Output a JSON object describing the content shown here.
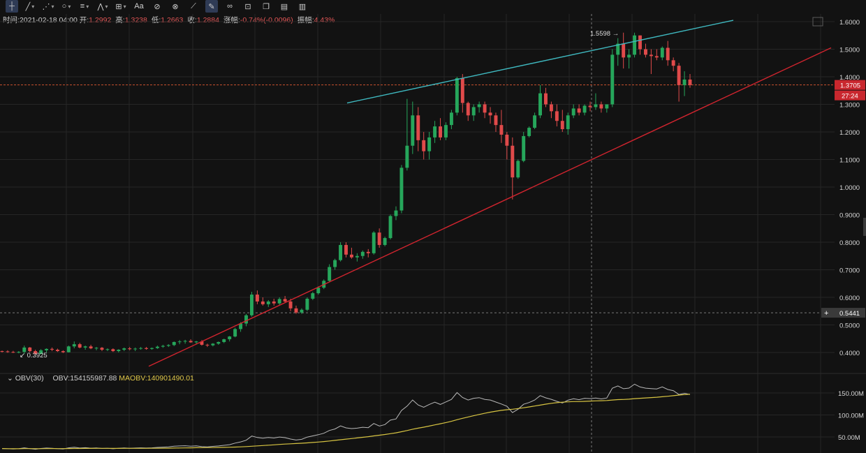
{
  "toolbar": {
    "tools": [
      {
        "name": "crosshair-icon",
        "glyph": "┼",
        "active": true
      },
      {
        "name": "trend-line-icon",
        "glyph": "╱",
        "dd": true
      },
      {
        "name": "multi-line-icon",
        "glyph": "⋰",
        "dd": true
      },
      {
        "name": "ellipse-icon",
        "glyph": "○",
        "dd": true
      },
      {
        "name": "parallel-lines-icon",
        "glyph": "≡",
        "dd": true
      },
      {
        "name": "zigzag-icon",
        "glyph": "⋀",
        "dd": true
      },
      {
        "name": "measure-icon",
        "glyph": "⊞",
        "dd": true
      },
      {
        "name": "text-icon",
        "glyph": "Aa"
      },
      {
        "name": "magnet-icon",
        "glyph": "⊘"
      },
      {
        "name": "brush-icon",
        "glyph": "⊗"
      },
      {
        "name": "ruler-icon",
        "glyph": "⟋"
      },
      {
        "name": "draw-mode-icon",
        "glyph": "✎",
        "active": true
      },
      {
        "name": "link-icon",
        "glyph": "∞"
      },
      {
        "name": "lock-icon",
        "glyph": "⊡"
      },
      {
        "name": "copy-icon",
        "glyph": "❐"
      },
      {
        "name": "stack-icon",
        "glyph": "▤"
      },
      {
        "name": "delete-icon",
        "glyph": "▥"
      }
    ]
  },
  "ohlc": {
    "time_label": "时间:",
    "time": "2021-02-18 04:00",
    "open_label": "开:",
    "open": "1.2992",
    "high_label": "高:",
    "high": "1.3238",
    "low_label": "低:",
    "low": "1.2663",
    "close_label": "收:",
    "close": "1.2884",
    "change_label": "涨幅:",
    "change": "-0.74%(-0.0096)",
    "amp_label": "振幅:",
    "amp": "4.43%"
  },
  "obv_legend": {
    "name": "OBV(30)",
    "obv": "OBV:154155987.88",
    "maobv": "MAOBV:140901490.01"
  },
  "chart_data": {
    "type": "candlestick",
    "y_ticks": [
      "1.6000",
      "1.5000",
      "1.4000",
      "1.3000",
      "1.2000",
      "1.1000",
      "1.0000",
      "0.9000",
      "0.8000",
      "0.7000",
      "0.6000",
      "0.5000",
      "0.4000"
    ],
    "ylim": [
      0.36,
      1.64
    ],
    "current_price": "1.3705",
    "countdown": "27:24",
    "crosshair_price": "0.5441",
    "high_marker": "1.5598",
    "low_marker": "0.3925",
    "candles": [
      [
        0.405,
        0.407,
        0.4,
        0.404
      ],
      [
        0.404,
        0.408,
        0.399,
        0.402
      ],
      [
        0.402,
        0.406,
        0.398,
        0.4
      ],
      [
        0.4,
        0.405,
        0.397,
        0.402
      ],
      [
        0.402,
        0.425,
        0.395,
        0.418
      ],
      [
        0.418,
        0.42,
        0.4,
        0.405
      ],
      [
        0.405,
        0.41,
        0.392,
        0.395
      ],
      [
        0.395,
        0.412,
        0.393,
        0.408
      ],
      [
        0.408,
        0.415,
        0.4,
        0.413
      ],
      [
        0.413,
        0.418,
        0.405,
        0.41
      ],
      [
        0.41,
        0.414,
        0.402,
        0.405
      ],
      [
        0.405,
        0.408,
        0.398,
        0.401
      ],
      [
        0.401,
        0.425,
        0.4,
        0.422
      ],
      [
        0.422,
        0.44,
        0.415,
        0.43
      ],
      [
        0.43,
        0.435,
        0.415,
        0.418
      ],
      [
        0.418,
        0.425,
        0.41,
        0.422
      ],
      [
        0.422,
        0.428,
        0.412,
        0.415
      ],
      [
        0.415,
        0.42,
        0.408,
        0.417
      ],
      [
        0.417,
        0.42,
        0.405,
        0.41
      ],
      [
        0.41,
        0.415,
        0.405,
        0.412
      ],
      [
        0.412,
        0.415,
        0.402,
        0.405
      ],
      [
        0.405,
        0.412,
        0.4,
        0.41
      ],
      [
        0.41,
        0.418,
        0.405,
        0.415
      ],
      [
        0.415,
        0.42,
        0.408,
        0.412
      ],
      [
        0.412,
        0.418,
        0.405,
        0.414
      ],
      [
        0.414,
        0.42,
        0.41,
        0.416
      ],
      [
        0.416,
        0.42,
        0.41,
        0.413
      ],
      [
        0.413,
        0.418,
        0.41,
        0.416
      ],
      [
        0.416,
        0.425,
        0.413,
        0.421
      ],
      [
        0.421,
        0.428,
        0.417,
        0.424
      ],
      [
        0.424,
        0.43,
        0.42,
        0.427
      ],
      [
        0.427,
        0.44,
        0.423,
        0.438
      ],
      [
        0.438,
        0.445,
        0.43,
        0.44
      ],
      [
        0.44,
        0.446,
        0.432,
        0.442
      ],
      [
        0.442,
        0.448,
        0.435,
        0.437
      ],
      [
        0.437,
        0.442,
        0.43,
        0.44
      ],
      [
        0.44,
        0.445,
        0.425,
        0.428
      ],
      [
        0.428,
        0.432,
        0.42,
        0.426
      ],
      [
        0.426,
        0.434,
        0.422,
        0.432
      ],
      [
        0.432,
        0.44,
        0.428,
        0.438
      ],
      [
        0.438,
        0.45,
        0.434,
        0.448
      ],
      [
        0.448,
        0.46,
        0.44,
        0.458
      ],
      [
        0.458,
        0.49,
        0.455,
        0.485
      ],
      [
        0.485,
        0.51,
        0.475,
        0.505
      ],
      [
        0.505,
        0.54,
        0.495,
        0.535
      ],
      [
        0.535,
        0.62,
        0.53,
        0.61
      ],
      [
        0.61,
        0.625,
        0.575,
        0.585
      ],
      [
        0.585,
        0.6,
        0.57,
        0.575
      ],
      [
        0.575,
        0.59,
        0.565,
        0.585
      ],
      [
        0.585,
        0.595,
        0.57,
        0.578
      ],
      [
        0.578,
        0.6,
        0.572,
        0.594
      ],
      [
        0.594,
        0.605,
        0.58,
        0.585
      ],
      [
        0.585,
        0.595,
        0.55,
        0.56
      ],
      [
        0.56,
        0.57,
        0.54,
        0.545
      ],
      [
        0.545,
        0.56,
        0.54,
        0.555
      ],
      [
        0.555,
        0.6,
        0.55,
        0.595
      ],
      [
        0.595,
        0.62,
        0.59,
        0.615
      ],
      [
        0.615,
        0.64,
        0.61,
        0.635
      ],
      [
        0.635,
        0.665,
        0.63,
        0.66
      ],
      [
        0.66,
        0.72,
        0.655,
        0.71
      ],
      [
        0.71,
        0.74,
        0.7,
        0.735
      ],
      [
        0.735,
        0.8,
        0.73,
        0.79
      ],
      [
        0.79,
        0.8,
        0.745,
        0.755
      ],
      [
        0.755,
        0.78,
        0.74,
        0.745
      ],
      [
        0.745,
        0.76,
        0.73,
        0.75
      ],
      [
        0.75,
        0.77,
        0.74,
        0.765
      ],
      [
        0.765,
        0.775,
        0.745,
        0.76
      ],
      [
        0.76,
        0.84,
        0.755,
        0.835
      ],
      [
        0.835,
        0.85,
        0.78,
        0.79
      ],
      [
        0.79,
        0.82,
        0.785,
        0.815
      ],
      [
        0.815,
        0.9,
        0.81,
        0.895
      ],
      [
        0.895,
        0.93,
        0.88,
        0.915
      ],
      [
        0.915,
        1.08,
        0.905,
        1.07
      ],
      [
        1.07,
        1.32,
        1.06,
        1.15
      ],
      [
        1.15,
        1.31,
        1.12,
        1.26
      ],
      [
        1.26,
        1.29,
        1.13,
        1.17
      ],
      [
        1.17,
        1.2,
        1.1,
        1.13
      ],
      [
        1.13,
        1.2,
        1.1,
        1.18
      ],
      [
        1.18,
        1.24,
        1.16,
        1.22
      ],
      [
        1.22,
        1.25,
        1.17,
        1.18
      ],
      [
        1.18,
        1.235,
        1.17,
        1.225
      ],
      [
        1.225,
        1.28,
        1.21,
        1.27
      ],
      [
        1.27,
        1.4,
        1.26,
        1.395
      ],
      [
        1.395,
        1.41,
        1.27,
        1.305
      ],
      [
        1.305,
        1.31,
        1.24,
        1.26
      ],
      [
        1.26,
        1.3,
        1.24,
        1.29
      ],
      [
        1.29,
        1.31,
        1.27,
        1.3
      ],
      [
        1.3,
        1.31,
        1.25,
        1.27
      ],
      [
        1.27,
        1.29,
        1.23,
        1.26
      ],
      [
        1.26,
        1.27,
        1.2,
        1.225
      ],
      [
        1.225,
        1.28,
        1.16,
        1.19
      ],
      [
        1.19,
        1.2,
        1.1,
        1.15
      ],
      [
        1.15,
        1.18,
        0.955,
        1.035
      ],
      [
        1.035,
        1.1,
        1.03,
        1.095
      ],
      [
        1.095,
        1.2,
        1.09,
        1.185
      ],
      [
        1.185,
        1.22,
        1.18,
        1.215
      ],
      [
        1.215,
        1.27,
        1.21,
        1.26
      ],
      [
        1.26,
        1.37,
        1.25,
        1.34
      ],
      [
        1.34,
        1.36,
        1.29,
        1.3
      ],
      [
        1.3,
        1.31,
        1.25,
        1.275
      ],
      [
        1.275,
        1.3,
        1.22,
        1.24
      ],
      [
        1.24,
        1.28,
        1.2,
        1.21
      ],
      [
        1.21,
        1.27,
        1.19,
        1.26
      ],
      [
        1.26,
        1.3,
        1.25,
        1.285
      ],
      [
        1.285,
        1.3,
        1.26,
        1.27
      ],
      [
        1.27,
        1.3,
        1.26,
        1.295
      ],
      [
        1.295,
        1.31,
        1.275,
        1.29
      ],
      [
        1.29,
        1.34,
        1.28,
        1.3
      ],
      [
        1.3,
        1.31,
        1.27,
        1.285
      ],
      [
        1.285,
        1.3,
        1.27,
        1.3
      ],
      [
        1.3,
        1.5,
        1.29,
        1.48
      ],
      [
        1.48,
        1.54,
        1.44,
        1.52
      ],
      [
        1.52,
        1.56,
        1.43,
        1.47
      ],
      [
        1.47,
        1.5,
        1.43,
        1.48
      ],
      [
        1.48,
        1.56,
        1.47,
        1.55
      ],
      [
        1.55,
        1.55,
        1.48,
        1.5
      ],
      [
        1.5,
        1.52,
        1.47,
        1.48
      ],
      [
        1.48,
        1.5,
        1.41,
        1.475
      ],
      [
        1.475,
        1.5,
        1.46,
        1.47
      ],
      [
        1.47,
        1.51,
        1.46,
        1.505
      ],
      [
        1.505,
        1.53,
        1.44,
        1.46
      ],
      [
        1.46,
        1.47,
        1.42,
        1.44
      ],
      [
        1.44,
        1.45,
        1.31,
        1.37
      ],
      [
        1.37,
        1.42,
        1.33,
        1.39
      ],
      [
        1.39,
        1.41,
        1.36,
        1.37
      ]
    ],
    "trend_lines": [
      {
        "name": "upper-channel-line",
        "color": "#3fb9c0",
        "x1": 0.497,
        "y1": 1.305,
        "x2": 1.05,
        "y2": 1.605
      },
      {
        "name": "support-line",
        "color": "#d0242e",
        "x1": 0.213,
        "y1": 0.35,
        "x2": 1.19,
        "y2": 1.505
      }
    ],
    "obv_ticks": [
      "150.00M",
      "100.00M",
      "50.00M"
    ],
    "obv_ylim": [
      20,
      175
    ]
  },
  "colors": {
    "up": "#26a65b",
    "down": "#e04a4a",
    "grid": "#262626",
    "axis_text": "#d8d8d8",
    "obv_line": "#b8b8b8",
    "maobv_line": "#d7c442",
    "price_tag": "#c9272e",
    "crosshair_tag": "#3a3a3a"
  }
}
